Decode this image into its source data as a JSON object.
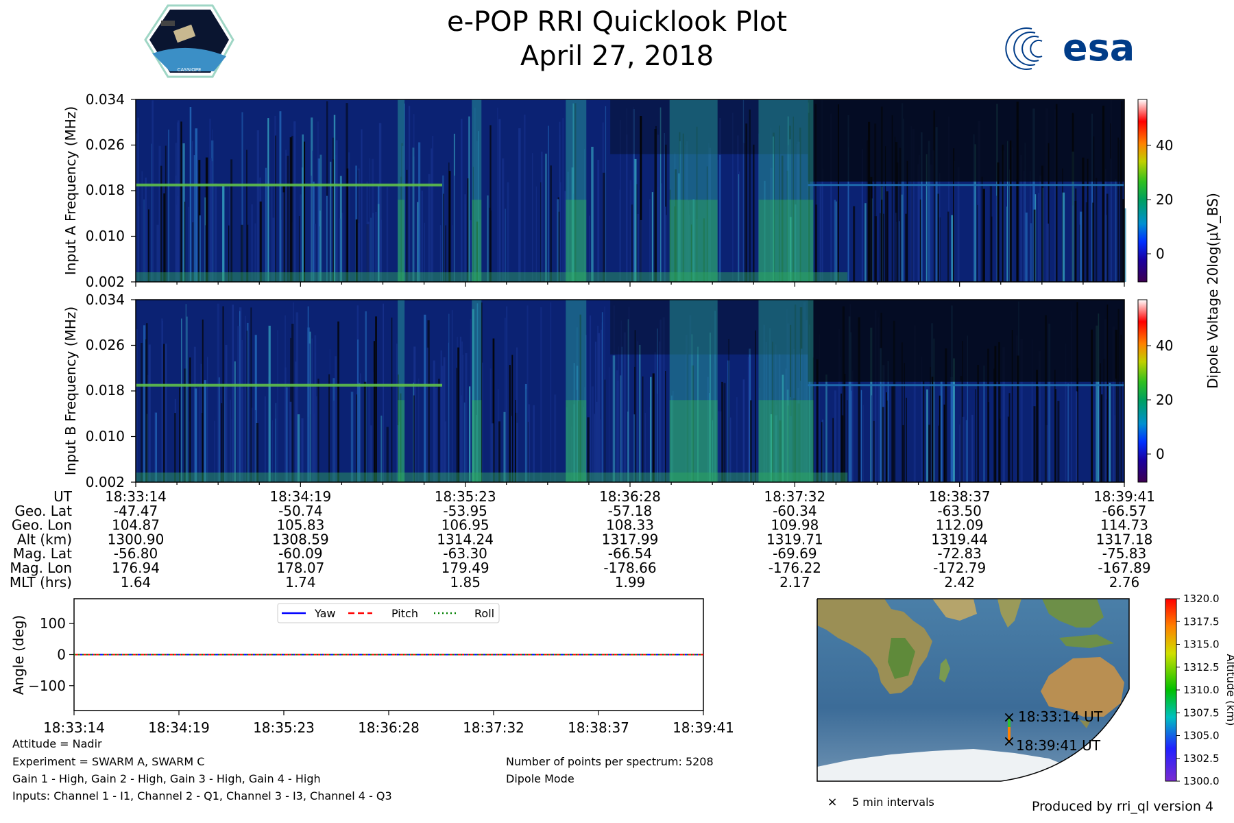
{
  "title": "e-POP RRI Quicklook Plot",
  "date": "April 27, 2018",
  "logo_left": "CASSIOPE",
  "logo_right": "esa",
  "colors": {
    "spec_bg": "#0a1f6e",
    "spec_dark": "#050810",
    "green_band": "#33c44a",
    "axis": "#000000"
  },
  "chart_data": [
    {
      "type": "heatmap",
      "name": "Input A spectrogram",
      "ylabel": "Input A Frequency (MHz)",
      "ytick_labels": [
        "0.002",
        "0.010",
        "0.018",
        "0.026",
        "0.034"
      ],
      "ylim": [
        0.002,
        0.034
      ],
      "x_times": [
        "18:33:14",
        "18:34:19",
        "18:35:23",
        "18:36:28",
        "18:37:32",
        "18:38:37",
        "18:39:41"
      ],
      "features": {
        "horizontal_line_mhz": 0.019,
        "bright_bands_time_fraction": [
          0.265,
          0.34,
          0.435,
          0.54,
          0.63
        ],
        "dark_region_time_fraction": [
          0.68,
          1.0
        ]
      }
    },
    {
      "type": "heatmap",
      "name": "Input B spectrogram",
      "ylabel": "Input B Frequency (MHz)",
      "ytick_labels": [
        "0.002",
        "0.010",
        "0.018",
        "0.026",
        "0.034"
      ],
      "ylim": [
        0.002,
        0.034
      ],
      "x_times": [
        "18:33:14",
        "18:34:19",
        "18:35:23",
        "18:36:28",
        "18:37:32",
        "18:38:37",
        "18:39:41"
      ]
    },
    {
      "type": "colorbar",
      "label": "Dipole Voltage 20log(μV_BS)",
      "ticks": [
        "40",
        "20",
        "0"
      ],
      "range": [
        -10,
        57
      ]
    },
    {
      "type": "line",
      "name": "Attitude",
      "ylabel": "Angle (deg)",
      "ylim": [
        -180,
        180
      ],
      "ytick_labels": [
        "100",
        "0",
        "−100"
      ],
      "x_labels": [
        "18:33:14",
        "18:34:19",
        "18:35:23",
        "18:36:28",
        "18:37:32",
        "18:38:37",
        "18:39:41"
      ],
      "series": [
        {
          "name": "Yaw",
          "color": "#0000ff",
          "values": [
            0,
            0,
            0,
            0,
            0,
            0,
            0
          ]
        },
        {
          "name": "Pitch",
          "color": "#ff0000",
          "values": [
            0,
            0,
            0,
            0,
            0,
            0,
            0
          ]
        },
        {
          "name": "Roll",
          "color": "#008000",
          "values": [
            0,
            0,
            0,
            0,
            0,
            0,
            0
          ]
        }
      ],
      "legend": [
        "Yaw",
        "Pitch",
        "Roll"
      ]
    },
    {
      "type": "map",
      "name": "Ground track",
      "markers": [
        "18:33:14 UT",
        "18:39:41 UT"
      ],
      "legend": "5 min intervals",
      "colorbar_label": "Altitude (km)",
      "colorbar_ticks": [
        "1320.0",
        "1317.5",
        "1315.0",
        "1312.5",
        "1310.0",
        "1307.5",
        "1305.0",
        "1302.5",
        "1300.0"
      ],
      "altitude_range_km": [
        1300.0,
        1320.0
      ]
    }
  ],
  "table": {
    "labels": [
      "UT",
      "Geo. Lat",
      "Geo. Lon",
      "Alt (km)",
      "Mag. Lat",
      "Mag. Lon",
      "MLT (hrs)"
    ],
    "columns": [
      [
        "18:33:14",
        "-47.47",
        "104.87",
        "1300.90",
        "-56.80",
        "176.94",
        "1.64"
      ],
      [
        "18:34:19",
        "-50.74",
        "105.83",
        "1308.59",
        "-60.09",
        "178.07",
        "1.74"
      ],
      [
        "18:35:23",
        "-53.95",
        "106.95",
        "1314.24",
        "-63.30",
        "179.49",
        "1.85"
      ],
      [
        "18:36:28",
        "-57.18",
        "108.33",
        "1317.99",
        "-66.54",
        "-178.66",
        "1.99"
      ],
      [
        "18:37:32",
        "-60.34",
        "109.98",
        "1319.71",
        "-69.69",
        "-176.22",
        "2.17"
      ],
      [
        "18:38:37",
        "-63.50",
        "112.09",
        "1319.44",
        "-72.83",
        "-172.79",
        "2.42"
      ],
      [
        "18:39:41",
        "-66.57",
        "114.73",
        "1317.18",
        "-75.83",
        "-167.89",
        "2.76"
      ]
    ]
  },
  "info_left": [
    "Attitude = Nadir",
    "Experiment = SWARM A, SWARM C",
    "Gain 1 - High, Gain 2 - High, Gain 3 - High, Gain 4 - High",
    "Inputs: Channel 1 - I1, Channel 2 - Q1, Channel 3 - I3, Channel 4 - Q3"
  ],
  "info_right": [
    "Number of points per spectrum: 5208",
    "Dipole Mode"
  ],
  "footer": "Produced by rri_ql version 4"
}
